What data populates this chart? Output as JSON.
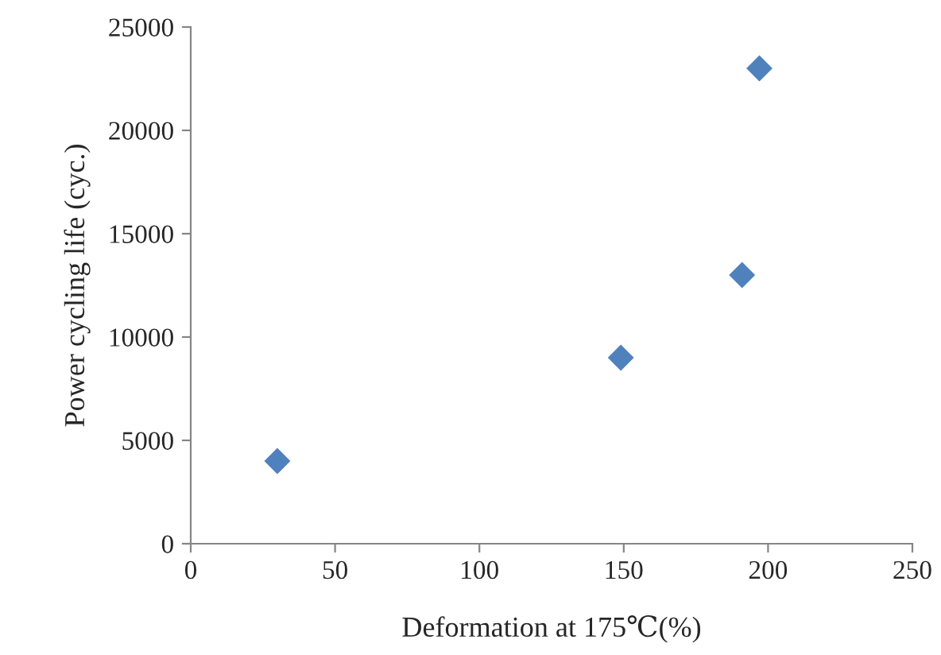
{
  "chart_data": {
    "type": "scatter",
    "xlabel": "Deformation at 175℃(%)",
    "ylabel": "Power cycling life (cyc.)",
    "x": [
      30,
      149,
      191,
      197
    ],
    "series": [
      {
        "color": "#4f81bd",
        "values": [
          4000,
          9000,
          13000,
          23000
        ]
      }
    ],
    "xlim": [
      0,
      250
    ],
    "xticks": [
      0,
      50,
      100,
      150,
      200,
      250
    ],
    "ylim": [
      0,
      25000
    ],
    "yticks": [
      0,
      5000,
      10000,
      15000,
      20000,
      25000
    ],
    "marker": "diamond",
    "grid": false,
    "legend": false
  }
}
